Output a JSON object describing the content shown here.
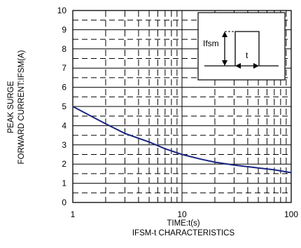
{
  "chart_data": {
    "type": "line",
    "title": "IFSM-t CHARACTERISTICS",
    "xlabel": "TIME:t(s)",
    "ylabel_lines": [
      "PEAK SURGE",
      "FORWARD CURRENT:IFSM(A)"
    ],
    "x_scale": "log",
    "xlim": [
      1,
      100
    ],
    "ylim": [
      0,
      10
    ],
    "x_ticks": [
      1,
      10,
      100
    ],
    "x_tick_labels": [
      "1",
      "10",
      "100"
    ],
    "y_ticks": [
      0,
      1,
      2,
      3,
      4,
      5,
      6,
      7,
      8,
      9,
      10
    ],
    "y_tick_labels": [
      "0",
      "1",
      "2",
      "3",
      "4",
      "5",
      "6",
      "7",
      "8",
      "9",
      "10"
    ],
    "grid": true,
    "line_color": "#1a2580",
    "series": [
      {
        "x": [
          1,
          2,
          3,
          5,
          7,
          10,
          15,
          20,
          30,
          50,
          70,
          100
        ],
        "values": [
          5.0,
          4.1,
          3.6,
          3.15,
          2.8,
          2.5,
          2.25,
          2.1,
          1.95,
          1.8,
          1.7,
          1.55
        ]
      }
    ],
    "inset": {
      "ifsm_label": "Ifsm",
      "t_label": "t"
    }
  }
}
